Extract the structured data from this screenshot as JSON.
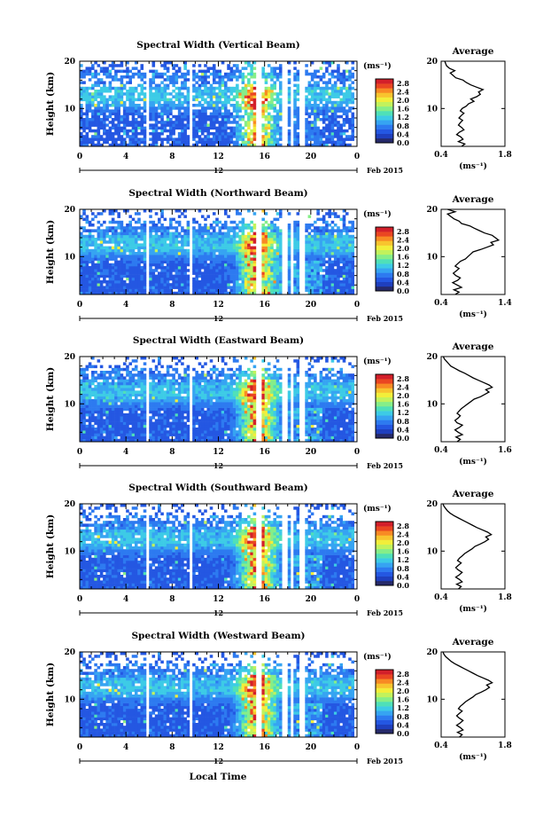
{
  "chart_data": {
    "type": "heatmap",
    "date_label": "Feb 2015",
    "xlabel": "Local Time",
    "x_ticks": [
      "0",
      "4",
      "8",
      "12",
      "16",
      "20",
      "0"
    ],
    "x_date_tick": "12",
    "xlim": [
      0,
      24
    ],
    "ylabel": "Height (km)",
    "y_ticks": [
      "10",
      "20"
    ],
    "ylim": [
      2,
      20
    ],
    "colorbar": {
      "unit": "(ms⁻¹)",
      "ticks": [
        "0.0",
        "0.4",
        "0.8",
        "1.2",
        "1.6",
        "2.0",
        "2.4",
        "2.8"
      ],
      "range": [
        0.0,
        3.0
      ],
      "colors": [
        "#262a6a",
        "#1f3fbe",
        "#2457e2",
        "#2d7af0",
        "#36a4f2",
        "#3dcbe6",
        "#4fe0b8",
        "#86ee88",
        "#c2f25c",
        "#f2ee3a",
        "#f8c42e",
        "#f88a24",
        "#ea4622",
        "#d31f2a"
      ]
    },
    "profile": {
      "title": "Average",
      "xlabel": "(ms⁻¹)",
      "y_ticks": [
        "10",
        "20"
      ]
    },
    "panels": [
      {
        "title": "Spectral Width (Vertical Beam)",
        "data_gaps": [
          [
            5.8,
            6.0
          ],
          [
            9.6,
            9.8
          ],
          [
            12.9,
            13.1
          ],
          [
            15.3,
            15.8
          ],
          [
            17.4,
            17.9
          ],
          [
            18.3,
            18.6
          ],
          [
            19.1,
            19.4
          ],
          [
            23.8,
            24.0
          ]
        ],
        "profile_xlim": [
          0.4,
          1.8
        ],
        "profile_xticks": [
          "0.4",
          "1.8"
        ],
        "profile": [
          [
            0.85,
            2
          ],
          [
            0.92,
            2.5
          ],
          [
            0.78,
            3
          ],
          [
            0.88,
            3.5
          ],
          [
            0.83,
            4
          ],
          [
            0.74,
            4.5
          ],
          [
            0.8,
            5
          ],
          [
            0.9,
            5.5
          ],
          [
            0.85,
            6
          ],
          [
            0.78,
            6.5
          ],
          [
            0.82,
            7
          ],
          [
            0.87,
            7.5
          ],
          [
            0.79,
            8
          ],
          [
            0.84,
            8.5
          ],
          [
            0.9,
            9
          ],
          [
            0.82,
            9.5
          ],
          [
            0.86,
            10
          ],
          [
            0.95,
            10.5
          ],
          [
            1.0,
            11
          ],
          [
            1.12,
            11.5
          ],
          [
            1.05,
            12
          ],
          [
            1.18,
            12.5
          ],
          [
            1.26,
            13
          ],
          [
            1.22,
            13.5
          ],
          [
            1.32,
            14
          ],
          [
            1.18,
            14.5
          ],
          [
            1.05,
            15
          ],
          [
            0.95,
            15.5
          ],
          [
            0.88,
            16
          ],
          [
            0.72,
            16.5
          ],
          [
            0.66,
            17
          ],
          [
            0.6,
            17.5
          ],
          [
            0.7,
            18
          ],
          [
            0.58,
            18.5
          ],
          [
            0.52,
            19
          ],
          [
            0.5,
            19.5
          ],
          [
            0.48,
            20
          ]
        ]
      },
      {
        "title": "Spectral Width (Northward Beam)",
        "data_gaps": [
          [
            5.8,
            6.0
          ],
          [
            9.6,
            9.8
          ],
          [
            12.9,
            13.1
          ],
          [
            15.3,
            15.8
          ],
          [
            17.4,
            17.9
          ],
          [
            18.3,
            18.6
          ],
          [
            19.1,
            19.4
          ],
          [
            23.8,
            24.0
          ]
        ],
        "profile_xlim": [
          0.4,
          1.4
        ],
        "profile_xticks": [
          "0.4",
          "1.4"
        ],
        "profile": [
          [
            0.62,
            2
          ],
          [
            0.68,
            2.5
          ],
          [
            0.6,
            3
          ],
          [
            0.72,
            3.5
          ],
          [
            0.65,
            4
          ],
          [
            0.58,
            4.5
          ],
          [
            0.66,
            5
          ],
          [
            0.7,
            5.5
          ],
          [
            0.63,
            6
          ],
          [
            0.59,
            6.5
          ],
          [
            0.64,
            7
          ],
          [
            0.68,
            7.5
          ],
          [
            0.62,
            8
          ],
          [
            0.66,
            8.5
          ],
          [
            0.7,
            9
          ],
          [
            0.78,
            9.5
          ],
          [
            0.82,
            10
          ],
          [
            0.86,
            10.5
          ],
          [
            0.9,
            11
          ],
          [
            1.02,
            11.5
          ],
          [
            1.12,
            12
          ],
          [
            1.22,
            12.5
          ],
          [
            1.18,
            13
          ],
          [
            1.3,
            13.5
          ],
          [
            1.25,
            14
          ],
          [
            1.2,
            14.5
          ],
          [
            1.08,
            15
          ],
          [
            1.0,
            15.5
          ],
          [
            0.92,
            16
          ],
          [
            0.85,
            16.5
          ],
          [
            0.72,
            17
          ],
          [
            0.68,
            17.5
          ],
          [
            0.6,
            18
          ],
          [
            0.55,
            18.5
          ],
          [
            0.5,
            19
          ],
          [
            0.62,
            19.5
          ],
          [
            0.5,
            20
          ]
        ]
      },
      {
        "title": "Spectral Width (Eastward Beam)",
        "data_gaps": [
          [
            5.8,
            6.0
          ],
          [
            9.6,
            9.8
          ],
          [
            12.9,
            13.1
          ],
          [
            15.3,
            15.8
          ],
          [
            17.4,
            17.9
          ],
          [
            18.3,
            18.6
          ],
          [
            19.1,
            19.4
          ],
          [
            23.8,
            24.0
          ]
        ],
        "profile_xlim": [
          0.4,
          1.6
        ],
        "profile_xticks": [
          "0.4",
          "1.6"
        ],
        "profile": [
          [
            0.7,
            2
          ],
          [
            0.76,
            2.5
          ],
          [
            0.68,
            3
          ],
          [
            0.8,
            3.5
          ],
          [
            0.72,
            4
          ],
          [
            0.66,
            4.5
          ],
          [
            0.74,
            5
          ],
          [
            0.8,
            5.5
          ],
          [
            0.7,
            6
          ],
          [
            0.66,
            6.5
          ],
          [
            0.72,
            7
          ],
          [
            0.76,
            7.5
          ],
          [
            0.7,
            8
          ],
          [
            0.74,
            8.5
          ],
          [
            0.78,
            9
          ],
          [
            0.84,
            9.5
          ],
          [
            0.9,
            10
          ],
          [
            0.96,
            10.5
          ],
          [
            1.02,
            11
          ],
          [
            1.14,
            11.5
          ],
          [
            1.22,
            12
          ],
          [
            1.3,
            12.5
          ],
          [
            1.24,
            13
          ],
          [
            1.36,
            13.5
          ],
          [
            1.3,
            14
          ],
          [
            1.2,
            14.5
          ],
          [
            1.1,
            15
          ],
          [
            1.0,
            15.5
          ],
          [
            0.92,
            16
          ],
          [
            0.84,
            16.5
          ],
          [
            0.74,
            17
          ],
          [
            0.66,
            17.5
          ],
          [
            0.58,
            18
          ],
          [
            0.54,
            18.5
          ],
          [
            0.5,
            19
          ],
          [
            0.46,
            19.5
          ],
          [
            0.44,
            20
          ]
        ]
      },
      {
        "title": "Spectral Width (Southward Beam)",
        "data_gaps": [
          [
            5.8,
            6.0
          ],
          [
            9.6,
            9.8
          ],
          [
            12.9,
            13.1
          ],
          [
            15.3,
            15.8
          ],
          [
            17.4,
            17.9
          ],
          [
            18.3,
            18.6
          ],
          [
            19.1,
            19.4
          ],
          [
            23.8,
            24.0
          ]
        ],
        "profile_xlim": [
          0.4,
          1.8
        ],
        "profile_xticks": [
          "0.4",
          "1.8"
        ],
        "profile": [
          [
            0.78,
            2
          ],
          [
            0.84,
            2.5
          ],
          [
            0.74,
            3
          ],
          [
            0.86,
            3.5
          ],
          [
            0.8,
            4
          ],
          [
            0.72,
            4.5
          ],
          [
            0.8,
            5
          ],
          [
            0.86,
            5.5
          ],
          [
            0.78,
            6
          ],
          [
            0.72,
            6.5
          ],
          [
            0.78,
            7
          ],
          [
            0.84,
            7.5
          ],
          [
            0.76,
            8
          ],
          [
            0.8,
            8.5
          ],
          [
            0.86,
            9
          ],
          [
            0.92,
            9.5
          ],
          [
            1.0,
            10
          ],
          [
            1.08,
            10.5
          ],
          [
            1.14,
            11
          ],
          [
            1.26,
            11.5
          ],
          [
            1.36,
            12
          ],
          [
            1.44,
            12.5
          ],
          [
            1.38,
            13
          ],
          [
            1.5,
            13.5
          ],
          [
            1.42,
            14
          ],
          [
            1.3,
            14.5
          ],
          [
            1.18,
            15
          ],
          [
            1.08,
            15.5
          ],
          [
            0.98,
            16
          ],
          [
            0.88,
            16.5
          ],
          [
            0.78,
            17
          ],
          [
            0.68,
            17.5
          ],
          [
            0.6,
            18
          ],
          [
            0.54,
            18.5
          ],
          [
            0.5,
            19
          ],
          [
            0.46,
            19.5
          ],
          [
            0.44,
            20
          ]
        ]
      },
      {
        "title": "Spectral Width (Westward Beam)",
        "data_gaps": [
          [
            5.8,
            6.0
          ],
          [
            9.6,
            9.8
          ],
          [
            12.9,
            13.1
          ],
          [
            15.3,
            15.8
          ],
          [
            17.4,
            17.9
          ],
          [
            18.3,
            18.6
          ],
          [
            19.1,
            19.4
          ],
          [
            23.8,
            24.0
          ]
        ],
        "profile_xlim": [
          0.4,
          1.8
        ],
        "profile_xticks": [
          "0.4",
          "1.8"
        ],
        "profile": [
          [
            0.8,
            2
          ],
          [
            0.86,
            2.5
          ],
          [
            0.76,
            3
          ],
          [
            0.88,
            3.5
          ],
          [
            0.82,
            4
          ],
          [
            0.74,
            4.5
          ],
          [
            0.82,
            5
          ],
          [
            0.88,
            5.5
          ],
          [
            0.8,
            6
          ],
          [
            0.74,
            6.5
          ],
          [
            0.8,
            7
          ],
          [
            0.86,
            7.5
          ],
          [
            0.78,
            8
          ],
          [
            0.82,
            8.5
          ],
          [
            0.88,
            9
          ],
          [
            0.94,
            9.5
          ],
          [
            1.02,
            10
          ],
          [
            1.1,
            10.5
          ],
          [
            1.16,
            11
          ],
          [
            1.28,
            11.5
          ],
          [
            1.38,
            12
          ],
          [
            1.46,
            12.5
          ],
          [
            1.4,
            13
          ],
          [
            1.52,
            13.5
          ],
          [
            1.44,
            14
          ],
          [
            1.32,
            14.5
          ],
          [
            1.2,
            15
          ],
          [
            1.1,
            15.5
          ],
          [
            1.0,
            16
          ],
          [
            0.9,
            16.5
          ],
          [
            0.8,
            17
          ],
          [
            0.7,
            17.5
          ],
          [
            0.62,
            18
          ],
          [
            0.56,
            18.5
          ],
          [
            0.5,
            19
          ],
          [
            0.46,
            19.5
          ],
          [
            0.44,
            20
          ]
        ]
      }
    ]
  }
}
